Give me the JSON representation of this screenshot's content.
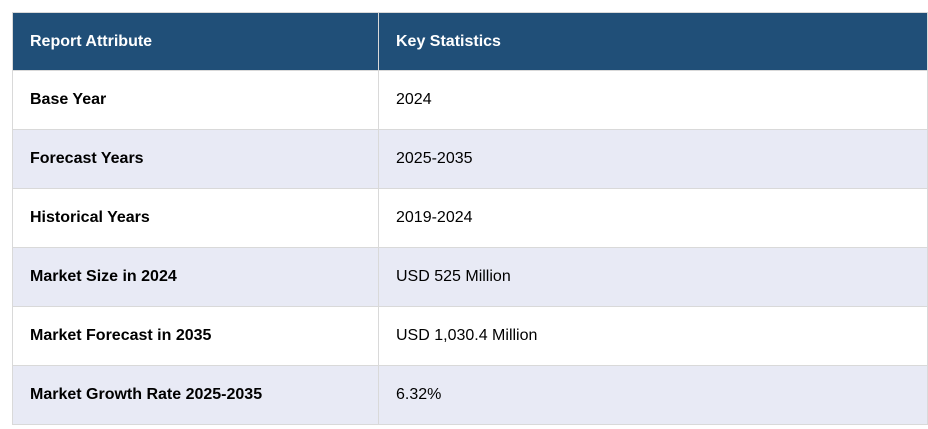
{
  "header": {
    "attribute": "Report Attribute",
    "statistics": "Key Statistics"
  },
  "rows": [
    {
      "attribute": "Base Year",
      "value": "2024"
    },
    {
      "attribute": "Forecast Years",
      "value": "2025-2035"
    },
    {
      "attribute": "Historical Years",
      "value": "2019-2024"
    },
    {
      "attribute": "Market Size in 2024",
      "value": "USD 525 Million"
    },
    {
      "attribute": "Market Forecast in 2035",
      "value": "USD 1,030.4 Million"
    },
    {
      "attribute": "Market Growth Rate 2025-2035",
      "value": "6.32%"
    }
  ],
  "colors": {
    "header_bg": "#204f78",
    "alt_row_bg": "#e8eaf5"
  }
}
